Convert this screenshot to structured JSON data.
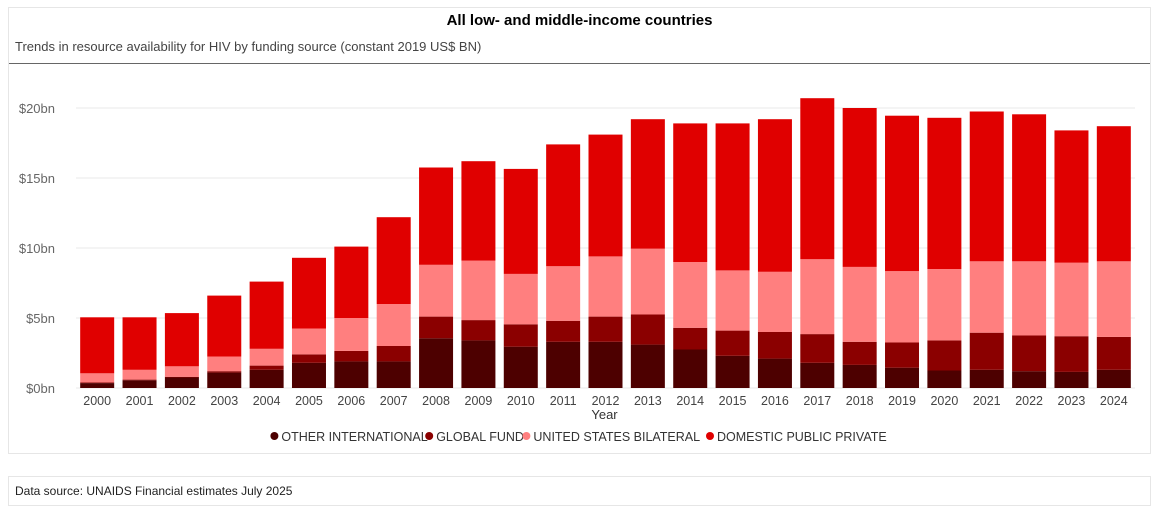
{
  "header": {
    "title": "All low- and middle-income countries",
    "subtitle": "Trends in resource availability for HIV by funding source (constant 2019 US$ BN)"
  },
  "footer": {
    "source": "Data source: UNAIDS Financial estimates July 2025"
  },
  "chart_data": {
    "type": "bar",
    "stacked": true,
    "xlabel": "Year",
    "ylabel": "",
    "ylim": [
      0,
      20
    ],
    "yticks": [
      0,
      5,
      10,
      15,
      20
    ],
    "ytick_labels": [
      "$0bn",
      "$5bn",
      "$10bn",
      "$15bn",
      "$20bn"
    ],
    "grid": true,
    "legend_position": "bottom-center",
    "categories": [
      "2000",
      "2001",
      "2002",
      "2003",
      "2004",
      "2005",
      "2006",
      "2007",
      "2008",
      "2009",
      "2010",
      "2011",
      "2012",
      "2013",
      "2014",
      "2015",
      "2016",
      "2017",
      "2018",
      "2019",
      "2020",
      "2021",
      "2022",
      "2023",
      "2024"
    ],
    "series": [
      {
        "name": "OTHER INTERNATIONAL",
        "color": "#4d0000",
        "values": [
          0.35,
          0.55,
          0.75,
          1.1,
          1.3,
          1.8,
          1.9,
          1.9,
          3.55,
          3.4,
          2.95,
          3.3,
          3.3,
          3.1,
          2.75,
          2.3,
          2.1,
          1.8,
          1.65,
          1.45,
          1.25,
          1.3,
          1.2,
          1.15,
          1.3
        ]
      },
      {
        "name": "GLOBAL FUND",
        "color": "#8b0000",
        "values": [
          0.05,
          0.05,
          0.05,
          0.1,
          0.3,
          0.6,
          0.75,
          1.1,
          1.55,
          1.45,
          1.6,
          1.5,
          1.8,
          2.15,
          1.55,
          1.8,
          1.9,
          2.05,
          1.65,
          1.8,
          2.15,
          2.65,
          2.55,
          2.55,
          2.35
        ]
      },
      {
        "name": "UNITED STATES BILATERAL",
        "color": "#ff7f7f",
        "values": [
          0.65,
          0.7,
          0.75,
          1.05,
          1.2,
          1.85,
          2.35,
          3.0,
          3.7,
          4.25,
          3.6,
          3.9,
          4.3,
          4.7,
          4.7,
          4.3,
          4.3,
          5.35,
          5.35,
          5.1,
          5.1,
          5.1,
          5.3,
          5.25,
          5.4
        ]
      },
      {
        "name": "DOMESTIC PUBLIC PRIVATE",
        "color": "#e00000",
        "values": [
          4.0,
          3.75,
          3.8,
          4.35,
          4.8,
          5.05,
          5.1,
          6.2,
          6.95,
          7.1,
          7.5,
          8.7,
          8.7,
          9.25,
          9.9,
          10.5,
          10.9,
          11.5,
          11.35,
          11.1,
          10.8,
          10.7,
          10.5,
          9.45,
          9.65
        ]
      }
    ]
  }
}
